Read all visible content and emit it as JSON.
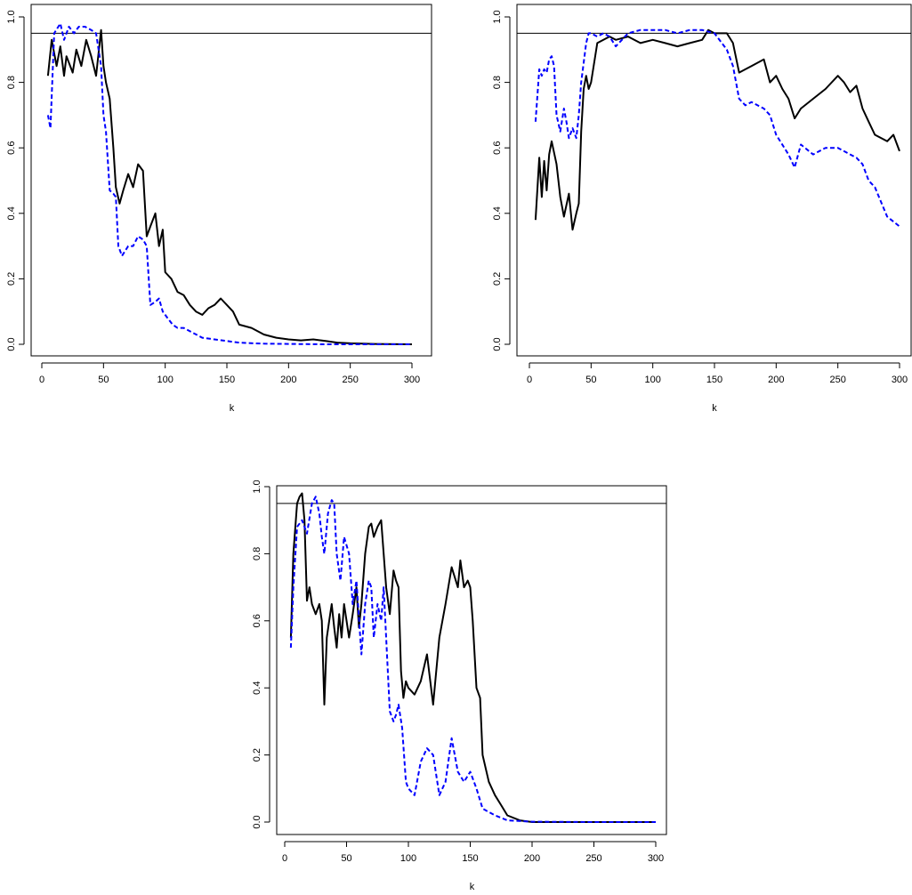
{
  "chart_data": [
    {
      "type": "line",
      "title": "",
      "xlabel": "k",
      "ylabel": "",
      "xlim": [
        0,
        300
      ],
      "ylim": [
        0,
        1
      ],
      "xticks": [
        0,
        50,
        100,
        150,
        200,
        250,
        300
      ],
      "yticks": [
        0.0,
        0.2,
        0.4,
        0.6,
        0.8,
        1.0
      ],
      "xtick_labels": [
        "0",
        "50",
        "100",
        "150",
        "200",
        "250",
        "300"
      ],
      "ytick_labels": [
        "0.0",
        "0.2",
        "0.4",
        "0.6",
        "0.8",
        "1.0"
      ],
      "reference_line": 0.95,
      "grid": false,
      "legend": "none",
      "series": [
        {
          "style": "solid",
          "color": "#000000",
          "x": [
            5,
            8,
            12,
            15,
            18,
            20,
            25,
            28,
            32,
            36,
            40,
            44,
            48,
            50,
            52,
            55,
            58,
            60,
            63,
            66,
            70,
            74,
            78,
            82,
            85,
            88,
            92,
            95,
            98,
            100,
            105,
            110,
            115,
            120,
            125,
            130,
            135,
            140,
            145,
            150,
            155,
            160,
            170,
            180,
            190,
            200,
            210,
            220,
            230,
            240,
            250,
            270,
            300
          ],
          "values": [
            0.82,
            0.93,
            0.85,
            0.91,
            0.82,
            0.88,
            0.83,
            0.9,
            0.85,
            0.93,
            0.88,
            0.82,
            0.96,
            0.85,
            0.8,
            0.75,
            0.6,
            0.48,
            0.43,
            0.47,
            0.52,
            0.48,
            0.55,
            0.53,
            0.33,
            0.36,
            0.4,
            0.3,
            0.35,
            0.22,
            0.2,
            0.16,
            0.15,
            0.12,
            0.1,
            0.09,
            0.11,
            0.12,
            0.14,
            0.12,
            0.1,
            0.06,
            0.05,
            0.03,
            0.02,
            0.015,
            0.012,
            0.015,
            0.01,
            0.005,
            0.003,
            0.001,
            0.0
          ]
        },
        {
          "style": "dashed",
          "color": "#0000ff",
          "x": [
            5,
            7,
            10,
            15,
            18,
            22,
            26,
            30,
            35,
            40,
            44,
            46,
            48,
            50,
            52,
            55,
            58,
            60,
            62,
            65,
            70,
            74,
            78,
            82,
            85,
            88,
            92,
            95,
            98,
            102,
            106,
            110,
            115,
            120,
            130,
            140,
            150,
            160,
            180,
            200,
            230,
            260,
            300
          ],
          "values": [
            0.7,
            0.66,
            0.95,
            0.98,
            0.93,
            0.97,
            0.95,
            0.97,
            0.97,
            0.96,
            0.95,
            0.9,
            0.85,
            0.7,
            0.65,
            0.47,
            0.46,
            0.45,
            0.3,
            0.27,
            0.3,
            0.3,
            0.33,
            0.32,
            0.3,
            0.12,
            0.13,
            0.14,
            0.1,
            0.08,
            0.06,
            0.05,
            0.05,
            0.04,
            0.02,
            0.015,
            0.01,
            0.005,
            0.002,
            0.001,
            0.0,
            0.0,
            0.0
          ]
        }
      ]
    },
    {
      "type": "line",
      "title": "",
      "xlabel": "k",
      "ylabel": "",
      "xlim": [
        0,
        300
      ],
      "ylim": [
        0,
        1
      ],
      "xticks": [
        0,
        50,
        100,
        150,
        200,
        250,
        300
      ],
      "yticks": [
        0.0,
        0.2,
        0.4,
        0.6,
        0.8,
        1.0
      ],
      "xtick_labels": [
        "0",
        "50",
        "100",
        "150",
        "200",
        "250",
        "300"
      ],
      "ytick_labels": [
        "0.0",
        "0.2",
        "0.4",
        "0.6",
        "0.8",
        "1.0"
      ],
      "reference_line": 0.95,
      "grid": false,
      "legend": "none",
      "series": [
        {
          "style": "solid",
          "color": "#000000",
          "x": [
            5,
            8,
            10,
            12,
            14,
            16,
            18,
            22,
            25,
            28,
            32,
            35,
            38,
            40,
            42,
            44,
            46,
            48,
            50,
            55,
            60,
            65,
            70,
            80,
            90,
            100,
            110,
            120,
            130,
            140,
            145,
            150,
            160,
            165,
            170,
            175,
            180,
            190,
            195,
            200,
            205,
            210,
            215,
            220,
            230,
            240,
            250,
            255,
            260,
            265,
            270,
            275,
            280,
            290,
            295,
            300
          ],
          "values": [
            0.38,
            0.57,
            0.45,
            0.56,
            0.47,
            0.58,
            0.62,
            0.55,
            0.45,
            0.39,
            0.46,
            0.35,
            0.4,
            0.43,
            0.65,
            0.78,
            0.82,
            0.78,
            0.8,
            0.92,
            0.93,
            0.94,
            0.93,
            0.94,
            0.92,
            0.93,
            0.92,
            0.91,
            0.92,
            0.93,
            0.96,
            0.95,
            0.95,
            0.92,
            0.83,
            0.84,
            0.85,
            0.87,
            0.8,
            0.82,
            0.78,
            0.75,
            0.69,
            0.72,
            0.75,
            0.78,
            0.82,
            0.8,
            0.77,
            0.79,
            0.72,
            0.68,
            0.64,
            0.62,
            0.64,
            0.59
          ]
        },
        {
          "style": "dashed",
          "color": "#0000ff",
          "x": [
            5,
            8,
            10,
            12,
            14,
            16,
            18,
            20,
            22,
            25,
            28,
            30,
            32,
            35,
            38,
            40,
            42,
            44,
            46,
            48,
            50,
            55,
            60,
            65,
            70,
            80,
            90,
            100,
            110,
            120,
            130,
            140,
            150,
            160,
            165,
            170,
            175,
            180,
            185,
            190,
            195,
            200,
            210,
            215,
            220,
            230,
            240,
            250,
            260,
            265,
            270,
            275,
            280,
            290,
            300
          ],
          "values": [
            0.68,
            0.84,
            0.82,
            0.84,
            0.83,
            0.87,
            0.88,
            0.85,
            0.7,
            0.65,
            0.72,
            0.68,
            0.63,
            0.66,
            0.63,
            0.7,
            0.8,
            0.86,
            0.92,
            0.95,
            0.95,
            0.94,
            0.95,
            0.94,
            0.91,
            0.95,
            0.96,
            0.96,
            0.96,
            0.95,
            0.96,
            0.96,
            0.95,
            0.9,
            0.85,
            0.75,
            0.73,
            0.74,
            0.73,
            0.72,
            0.7,
            0.64,
            0.58,
            0.54,
            0.61,
            0.58,
            0.6,
            0.6,
            0.58,
            0.57,
            0.55,
            0.5,
            0.48,
            0.39,
            0.36
          ]
        }
      ]
    },
    {
      "type": "line",
      "title": "",
      "xlabel": "k",
      "ylabel": "",
      "xlim": [
        0,
        300
      ],
      "ylim": [
        0,
        1
      ],
      "xticks": [
        0,
        50,
        100,
        150,
        200,
        250,
        300
      ],
      "yticks": [
        0.0,
        0.2,
        0.4,
        0.6,
        0.8,
        1.0
      ],
      "xtick_labels": [
        "0",
        "50",
        "100",
        "150",
        "200",
        "250",
        "300"
      ],
      "ytick_labels": [
        "0.0",
        "0.2",
        "0.4",
        "0.6",
        "0.8",
        "1.0"
      ],
      "reference_line": 0.95,
      "grid": false,
      "legend": "none",
      "series": [
        {
          "style": "solid",
          "color": "#000000",
          "x": [
            5,
            7,
            10,
            12,
            14,
            16,
            18,
            20,
            22,
            25,
            28,
            30,
            32,
            34,
            36,
            38,
            40,
            42,
            44,
            46,
            48,
            50,
            52,
            55,
            58,
            60,
            62,
            65,
            68,
            70,
            72,
            75,
            78,
            82,
            85,
            88,
            90,
            92,
            94,
            96,
            98,
            100,
            105,
            110,
            115,
            120,
            125,
            130,
            135,
            140,
            142,
            145,
            148,
            150,
            152,
            155,
            158,
            160,
            165,
            170,
            175,
            180,
            190,
            200,
            250,
            300
          ],
          "values": [
            0.55,
            0.8,
            0.95,
            0.97,
            0.98,
            0.9,
            0.66,
            0.7,
            0.65,
            0.62,
            0.65,
            0.6,
            0.35,
            0.55,
            0.6,
            0.65,
            0.58,
            0.52,
            0.62,
            0.55,
            0.65,
            0.6,
            0.55,
            0.62,
            0.7,
            0.58,
            0.65,
            0.8,
            0.88,
            0.89,
            0.85,
            0.88,
            0.9,
            0.7,
            0.62,
            0.75,
            0.72,
            0.7,
            0.45,
            0.37,
            0.42,
            0.4,
            0.38,
            0.42,
            0.5,
            0.35,
            0.55,
            0.65,
            0.76,
            0.7,
            0.78,
            0.7,
            0.72,
            0.7,
            0.6,
            0.4,
            0.37,
            0.2,
            0.12,
            0.08,
            0.05,
            0.02,
            0.005,
            0.0,
            0.0,
            0.0
          ]
        },
        {
          "style": "dashed",
          "color": "#0000ff",
          "x": [
            5,
            7,
            10,
            14,
            18,
            22,
            25,
            28,
            30,
            32,
            35,
            38,
            40,
            42,
            45,
            48,
            52,
            55,
            58,
            62,
            65,
            68,
            70,
            72,
            75,
            78,
            80,
            82,
            85,
            88,
            90,
            92,
            95,
            98,
            100,
            105,
            110,
            115,
            120,
            125,
            130,
            135,
            140,
            145,
            150,
            155,
            160,
            170,
            180,
            200,
            250,
            300
          ],
          "values": [
            0.52,
            0.7,
            0.88,
            0.9,
            0.86,
            0.95,
            0.97,
            0.92,
            0.85,
            0.8,
            0.92,
            0.96,
            0.95,
            0.8,
            0.72,
            0.85,
            0.8,
            0.65,
            0.72,
            0.5,
            0.65,
            0.72,
            0.7,
            0.55,
            0.65,
            0.6,
            0.7,
            0.55,
            0.33,
            0.3,
            0.32,
            0.35,
            0.28,
            0.12,
            0.1,
            0.08,
            0.18,
            0.22,
            0.2,
            0.08,
            0.12,
            0.25,
            0.15,
            0.12,
            0.15,
            0.1,
            0.04,
            0.02,
            0.005,
            0.001,
            0.0,
            0.0
          ]
        }
      ]
    }
  ]
}
